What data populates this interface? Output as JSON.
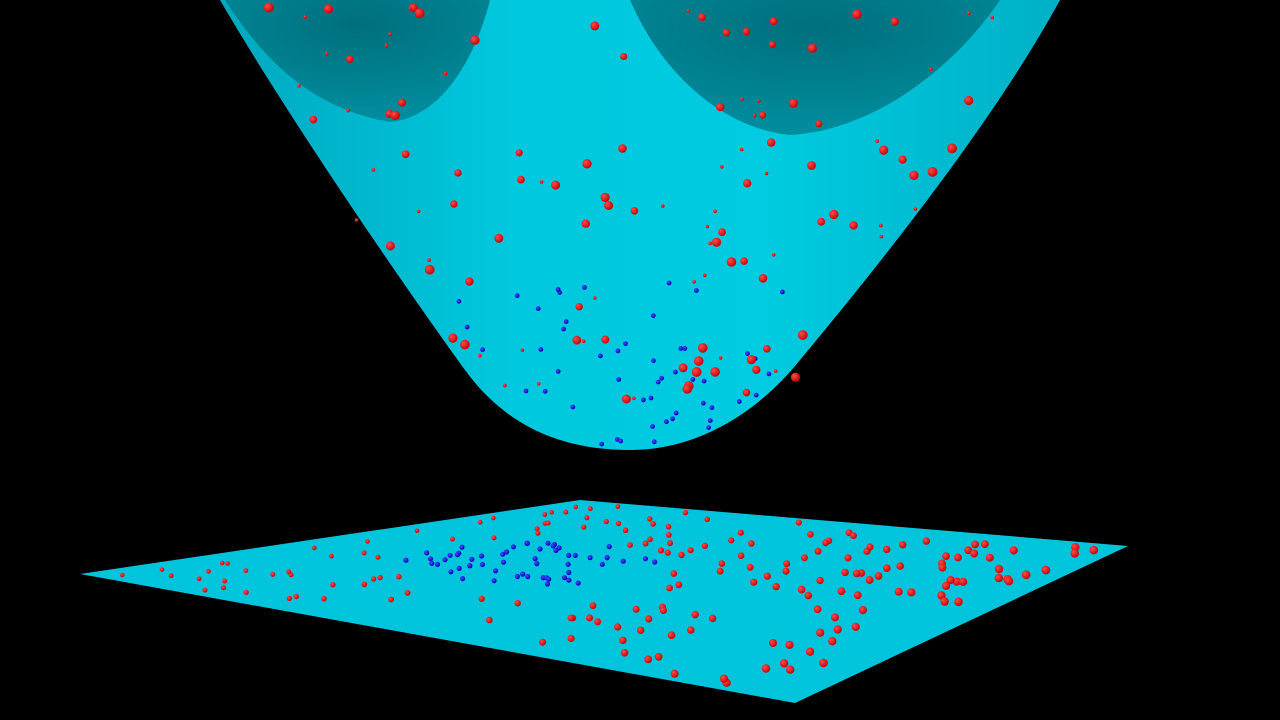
{
  "colors": {
    "background": "#000000",
    "surface": "#00c4dc",
    "surface_inner": "#007d8c",
    "class_outer": "#e00000",
    "class_inner": "#1414f0"
  },
  "diagram": {
    "surfaces": [
      "paraboloid",
      "plane"
    ],
    "paraboloid": {
      "outer_points": 119,
      "inner_points": 50
    },
    "plane": {
      "outer_points": 175,
      "inner_points": 55
    }
  }
}
